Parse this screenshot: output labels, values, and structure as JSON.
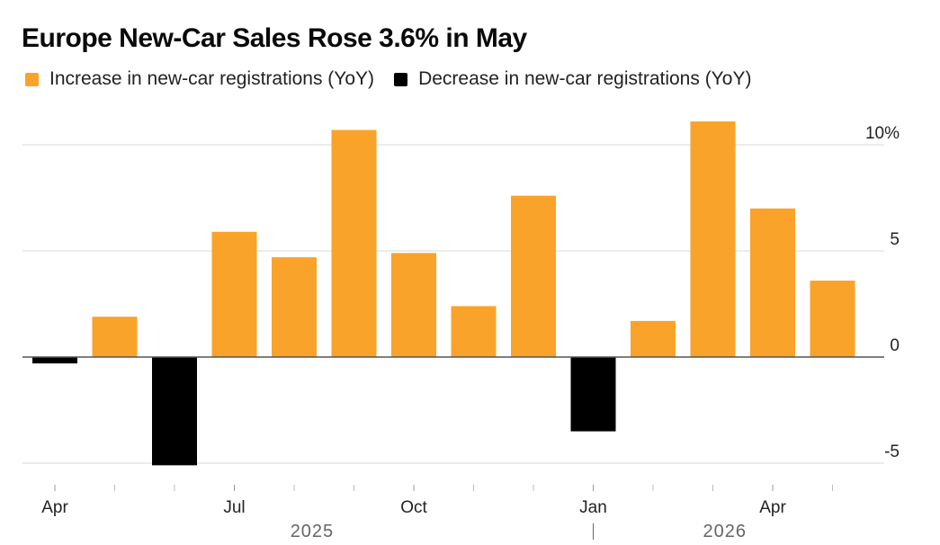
{
  "title": "Europe New-Car Sales Rose 3.6% in May",
  "legend": {
    "increase": {
      "label": "Increase in new-car registrations (YoY)",
      "color": "#F9A32A"
    },
    "decrease": {
      "label": "Decrease in new-car registrations (YoY)",
      "color": "#000000"
    }
  },
  "chart_data": {
    "type": "bar",
    "categories": [
      "Apr 2025",
      "May 2025",
      "Jun 2025",
      "Jul 2025",
      "Aug 2025",
      "Sep 2025",
      "Oct 2025",
      "Nov 2025",
      "Dec 2025",
      "Jan 2026",
      "Feb 2026",
      "Mar 2026",
      "Apr 2026",
      "May 2026"
    ],
    "values": [
      -0.3,
      1.9,
      -5.1,
      5.9,
      4.7,
      10.7,
      4.9,
      2.4,
      7.6,
      -3.5,
      1.7,
      11.1,
      7.0,
      3.6
    ],
    "ylim": [
      -5.5,
      10.8
    ],
    "y_ticks": [
      {
        "value": 10,
        "label": "10%"
      },
      {
        "value": 5,
        "label": "5"
      },
      {
        "value": 0,
        "label": "0"
      },
      {
        "value": -5,
        "label": "-5"
      }
    ],
    "x_ticks": [
      {
        "index": 0,
        "label": "Apr"
      },
      {
        "index": 3,
        "label": "Jul"
      },
      {
        "index": 6,
        "label": "Oct"
      },
      {
        "index": 9,
        "label": "Jan"
      },
      {
        "index": 12,
        "label": "Apr"
      }
    ],
    "minor_ticks": [
      1,
      2,
      4,
      5,
      7,
      8,
      10,
      11,
      13
    ],
    "year_labels": [
      {
        "label": "2025",
        "center_index": 4.3
      },
      {
        "label": "2026",
        "center_index": 11.2
      }
    ],
    "year_divider_index": 9,
    "grid": true,
    "colors": {
      "positive": "#F9A32A",
      "negative": "#000000",
      "grid": "#D9D9D9",
      "zero_line": "#555555"
    }
  }
}
